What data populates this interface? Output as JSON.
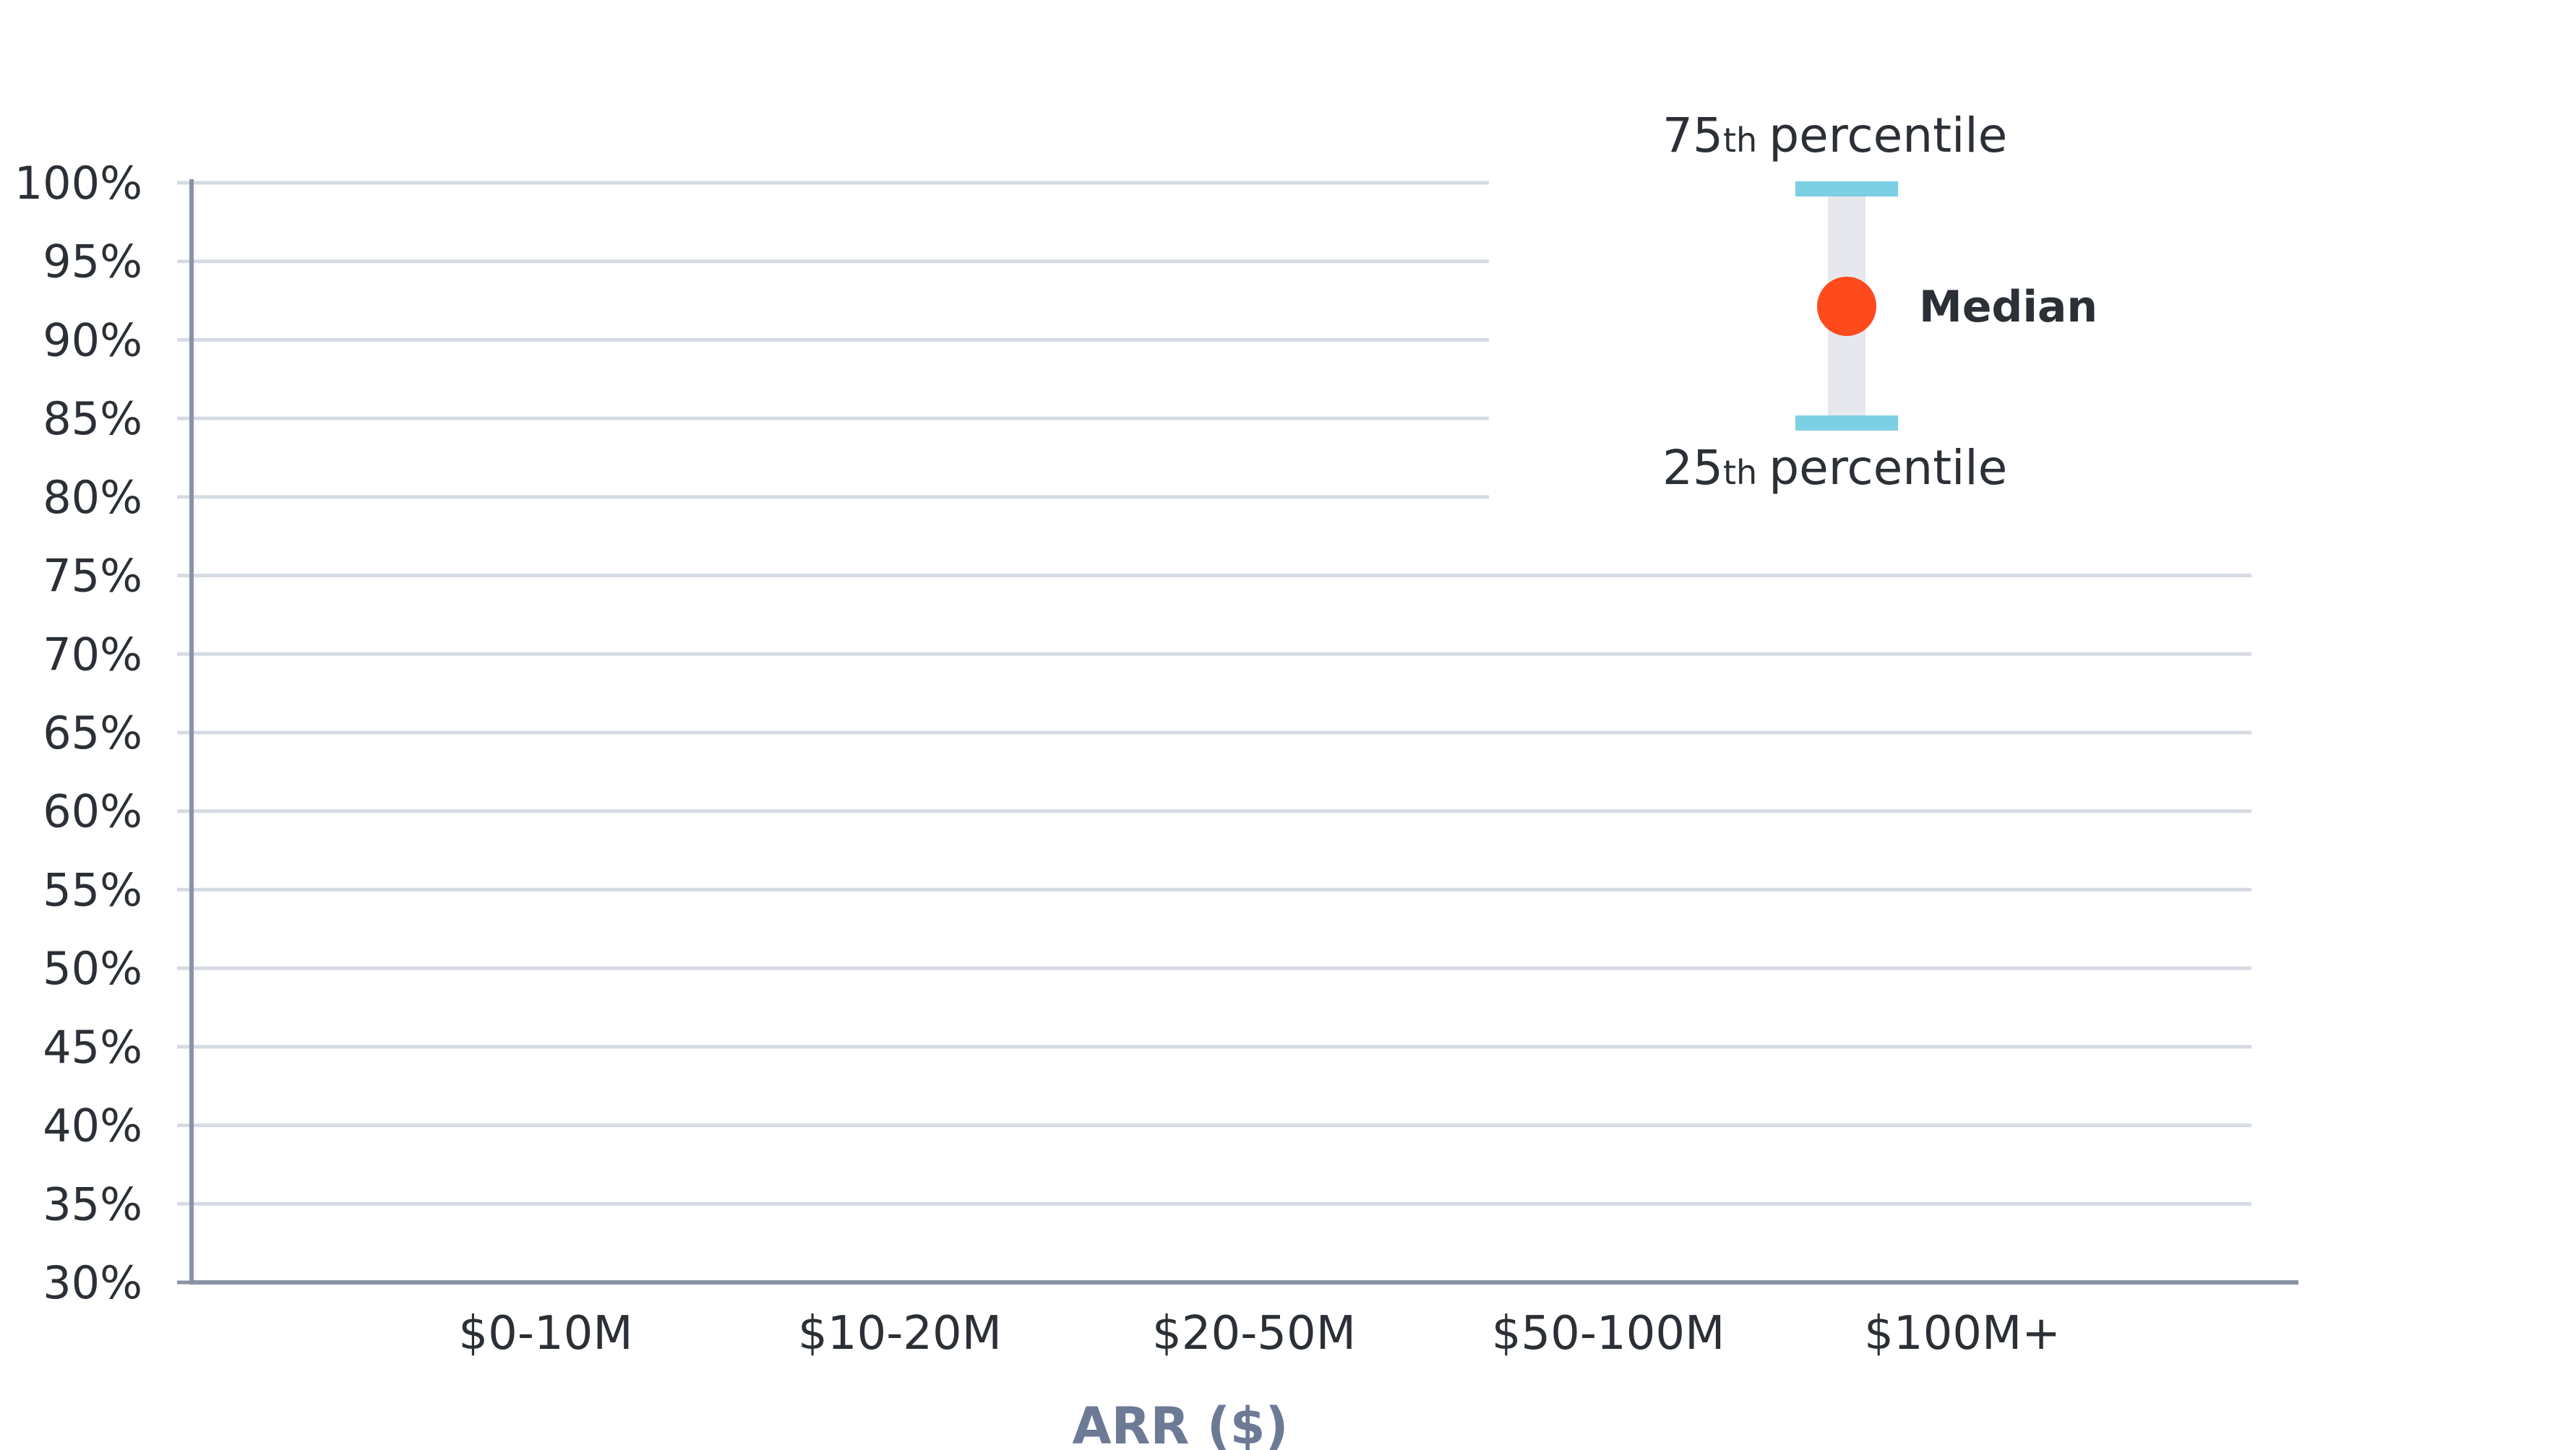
{
  "chart_data": {
    "type": "scatter",
    "categories": [
      "$0-10M",
      "$10-20M",
      "$20-50M",
      "$50-100M",
      "$100M+"
    ],
    "series": [],
    "y_ticks": [
      "30%",
      "35%",
      "40%",
      "45%",
      "50%",
      "55%",
      "60%",
      "65%",
      "70%",
      "75%",
      "80%",
      "85%",
      "90%",
      "95%",
      "100%"
    ],
    "ylim": [
      30,
      100
    ],
    "y_step": 5,
    "xlabel": "ARR ($)",
    "ylabel": "",
    "grid": true,
    "legend": {
      "placement": "top-right",
      "upper_number": "75",
      "upper_suffix": "th",
      "upper_text": "percentile",
      "lower_number": "25",
      "lower_suffix": "th",
      "lower_text": "percentile",
      "median_label": "Median"
    },
    "colors": {
      "grid": "#d6dbe3",
      "axis": "#8a93a6",
      "percentile_cap": "#7dcfe3",
      "range_bar": "#e6e8ee",
      "median_dot": "#ff4a1c",
      "axis_title": "#6c7a96",
      "text": "#2b2f36"
    }
  }
}
